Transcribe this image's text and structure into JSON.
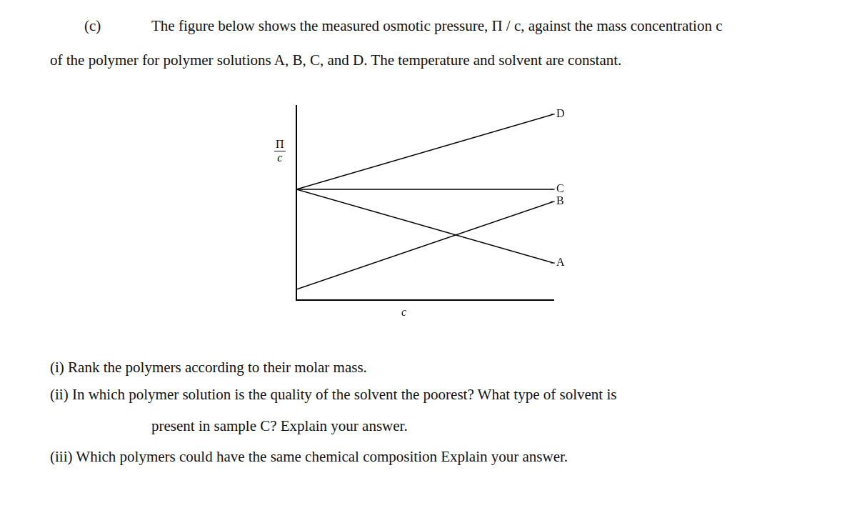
{
  "header": {
    "label": "(c)",
    "text": "The figure below shows the measured osmotic pressure, Π / c, against the mass concentration c"
  },
  "intro_continued": "of the polymer for polymer solutions A, B, C, and D. The temperature and solvent are constant.",
  "chart_data": {
    "type": "line",
    "xlabel": "c",
    "ylabel": {
      "numerator": "Π",
      "denominator": "c"
    },
    "x": [
      0,
      10
    ],
    "series": [
      {
        "name": "D",
        "color": "#000000",
        "values": [
          5.7,
          9.56
        ]
      },
      {
        "name": "C",
        "color": "#000000",
        "values": [
          5.7,
          5.7
        ]
      },
      {
        "name": "B",
        "color": "#000000",
        "values": [
          0.55,
          5.07
        ]
      },
      {
        "name": "A",
        "color": "#000000",
        "values": [
          5.7,
          1.91
        ]
      }
    ],
    "xlim": [
      0,
      10
    ],
    "ylim": [
      0,
      10
    ],
    "grid": false,
    "tick_labels": false
  },
  "questions": [
    {
      "label": "(i)",
      "lines": [
        "Rank the polymers according to their molar mass."
      ]
    },
    {
      "label": "(ii)",
      "lines": [
        "In which polymer solution is the quality of the solvent the poorest? What type of solvent is",
        "present in sample C? Explain your answer."
      ]
    },
    {
      "label": "(iii)",
      "lines": [
        "Which polymers could have the same chemical composition Explain your answer."
      ]
    }
  ]
}
